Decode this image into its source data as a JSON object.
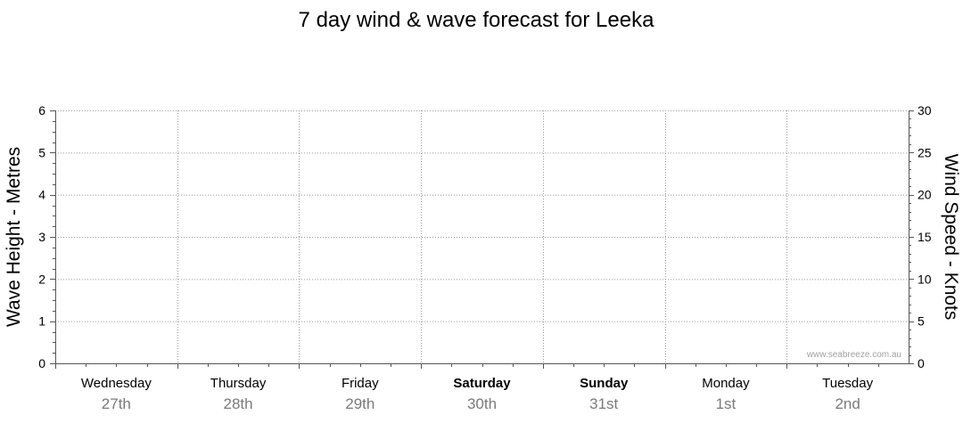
{
  "chart_data": {
    "type": "line",
    "title": "7 day wind & wave forecast for Leeka",
    "y_left": {
      "label": "Wave Height - Metres",
      "range": [
        0,
        6
      ],
      "ticks": [
        0,
        1,
        2,
        3,
        4,
        5,
        6
      ]
    },
    "y_right": {
      "label": "Wind Speed - Knots",
      "range": [
        0,
        30
      ],
      "ticks": [
        0,
        5,
        10,
        15,
        20,
        25,
        30
      ]
    },
    "days": [
      {
        "name": "Wednesday",
        "date": "27th",
        "bold": false
      },
      {
        "name": "Thursday",
        "date": "28th",
        "bold": false
      },
      {
        "name": "Friday",
        "date": "29th",
        "bold": false
      },
      {
        "name": "Saturday",
        "date": "30th",
        "bold": true
      },
      {
        "name": "Sunday",
        "date": "31st",
        "bold": true
      },
      {
        "name": "Monday",
        "date": "1st",
        "bold": false
      },
      {
        "name": "Tuesday",
        "date": "2nd",
        "bold": false
      }
    ],
    "series": [],
    "grid": true,
    "watermark": "www.seabreeze.com.au"
  },
  "colors": {
    "grid": "#9a9a9a",
    "axis": "#555555",
    "text": "#000000",
    "date_text": "#7a7a7a",
    "watermark": "#a0a0a0"
  }
}
